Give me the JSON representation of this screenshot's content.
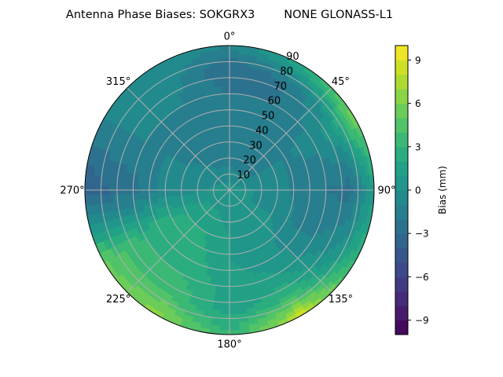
{
  "chart_data": {
    "type": "heatmap",
    "subtype": "polar-contour",
    "title": "Antenna Phase Biases: SOKGRX3        NONE GLONASS-L1",
    "theta_direction": "clockwise",
    "theta_zero": "top",
    "theta_ticks": [
      "0°",
      "45°",
      "90°",
      "135°",
      "180°",
      "225°",
      "270°",
      "315°"
    ],
    "theta_tick_values": [
      0,
      45,
      90,
      135,
      180,
      225,
      270,
      315
    ],
    "r_ticks": [
      "10",
      "20",
      "30",
      "40",
      "50",
      "60",
      "70",
      "80",
      "90"
    ],
    "r_tick_values": [
      10,
      20,
      30,
      40,
      50,
      60,
      70,
      80,
      90
    ],
    "rlim": [
      0,
      90
    ],
    "grid": true,
    "azimuths": [
      0,
      30,
      60,
      90,
      120,
      150,
      180,
      210,
      240,
      270,
      300,
      330
    ],
    "zeniths": [
      0,
      15,
      30,
      45,
      60,
      75,
      90
    ],
    "values": [
      [
        0.5,
        0.5,
        0.5,
        0.5,
        0.5,
        0.5,
        0.5,
        0.5,
        0.5,
        0.5,
        0.5,
        0.5
      ],
      [
        -1,
        -1.5,
        -1,
        0,
        0,
        0.5,
        0.5,
        1,
        1,
        0,
        -0.5,
        -1
      ],
      [
        -1.5,
        -2,
        -1,
        -0.5,
        0,
        0.5,
        1,
        2,
        2,
        -0.5,
        -1,
        -1.5
      ],
      [
        -2,
        -1.5,
        -1,
        -1.5,
        -1,
        0.5,
        1,
        2.5,
        3,
        -1,
        -1,
        -1.5
      ],
      [
        -2,
        -2,
        -0.5,
        -2,
        -1,
        1,
        1.5,
        3,
        3,
        -2.5,
        -1,
        -1
      ],
      [
        -3,
        -2,
        1,
        -2.5,
        0,
        3,
        1.5,
        4,
        4,
        -3,
        -1,
        -0.5
      ],
      [
        -1,
        2,
        6,
        1,
        3,
        8.5,
        3,
        6.5,
        5,
        -4,
        -1,
        0
      ]
    ],
    "colorbar": {
      "label": "Bias (mm)",
      "colormap": "viridis",
      "range": [
        -10,
        10
      ],
      "levels_step": 1,
      "ticks": [
        "−9",
        "−6",
        "−3",
        "0",
        "3",
        "6",
        "9"
      ],
      "tick_values": [
        -9,
        -6,
        -3,
        0,
        3,
        6,
        9
      ]
    }
  }
}
